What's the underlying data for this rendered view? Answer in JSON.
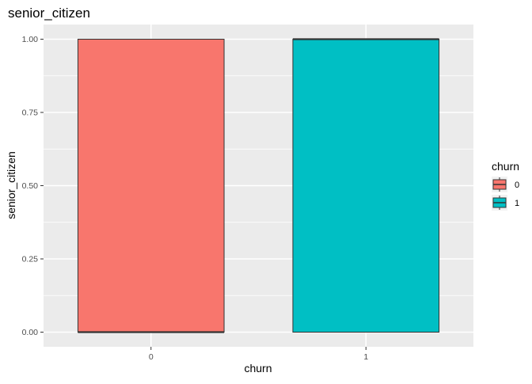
{
  "chart_data": {
    "type": "boxplot",
    "title": "senior_citizen",
    "xlabel": "churn",
    "ylabel": "senior_citizen",
    "categories": [
      "0",
      "1"
    ],
    "ylim": [
      -0.05,
      1.05
    ],
    "yticks": [
      0.0,
      0.25,
      0.5,
      0.75,
      1.0
    ],
    "ytick_labels": [
      "0.00",
      "0.25",
      "0.50",
      "0.75",
      "1.00"
    ],
    "boxes": [
      {
        "category": "0",
        "min": 0,
        "q1": 0,
        "median": 0,
        "q3": 1,
        "max": 1,
        "color": "#F8766D"
      },
      {
        "category": "1",
        "min": 0,
        "q1": 0,
        "median": 1,
        "q3": 1,
        "max": 1,
        "color": "#00BFC4"
      }
    ],
    "legend": {
      "title": "churn",
      "placement": "right",
      "entries": [
        {
          "label": "0",
          "color": "#F8766D"
        },
        {
          "label": "1",
          "color": "#00BFC4"
        }
      ]
    },
    "grid": true,
    "panel_background": "#EBEBEB"
  }
}
